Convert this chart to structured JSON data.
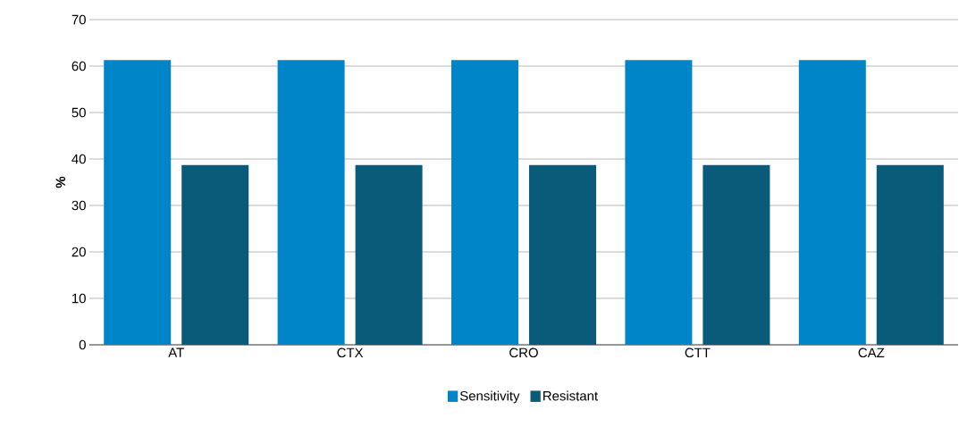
{
  "chart_data": {
    "type": "bar",
    "ylabel": "%",
    "categories": [
      "AT",
      "CTX",
      "CRO",
      "CTT",
      "CAZ"
    ],
    "series": [
      {
        "name": "Sensitivity",
        "color": "#0085c8",
        "values": [
          61.3,
          61.3,
          61.3,
          61.3,
          61.3
        ]
      },
      {
        "name": "Resistant",
        "color": "#0a5a7a",
        "values": [
          38.7,
          38.7,
          38.7,
          38.7,
          38.7
        ]
      }
    ],
    "ylim": [
      0,
      70
    ],
    "yticks": [
      0,
      10,
      20,
      30,
      40,
      50,
      60,
      70
    ],
    "grid": "y",
    "legend": "bottom"
  }
}
